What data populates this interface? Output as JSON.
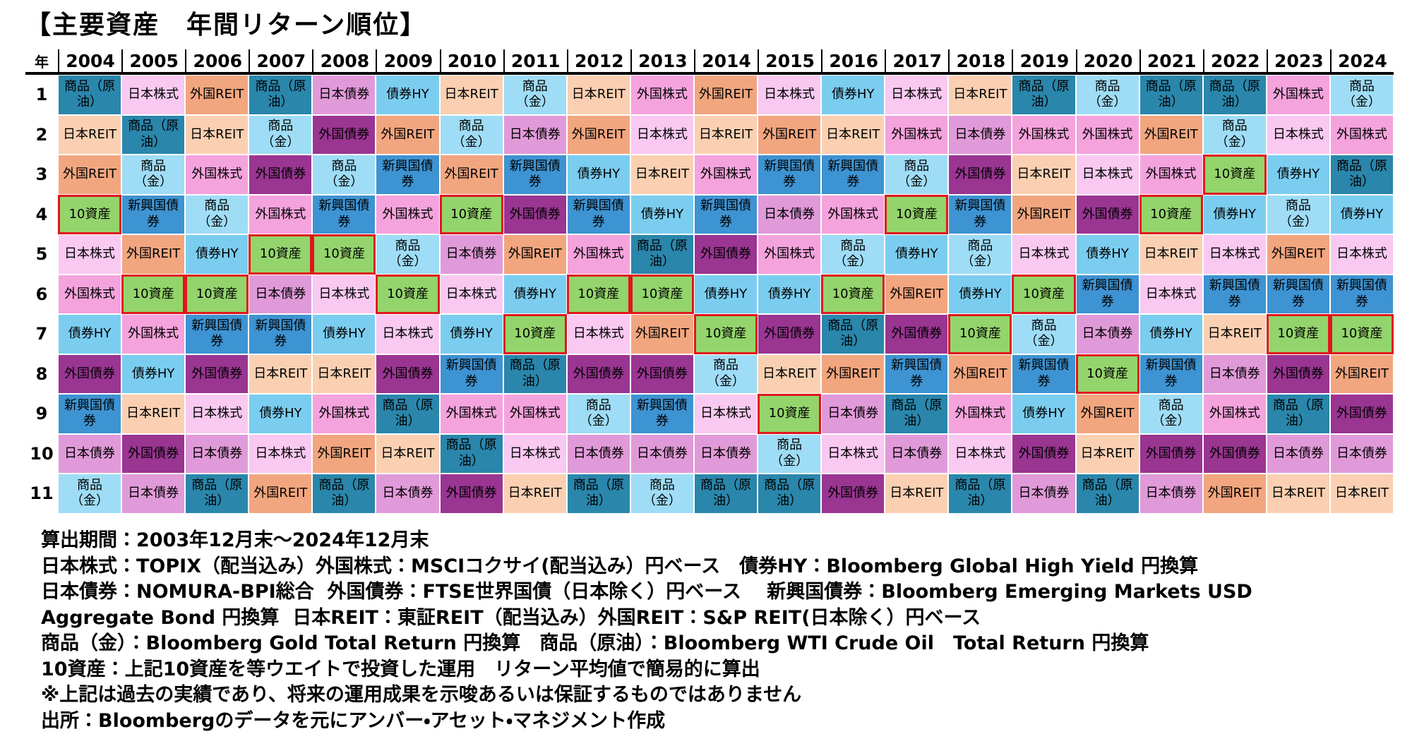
{
  "title": "【主要資産　年間リターン順位】",
  "table": {
    "corner": "年",
    "years": [
      2004,
      2005,
      2006,
      2007,
      2008,
      2009,
      2010,
      2011,
      2012,
      2013,
      2014,
      2015,
      2016,
      2017,
      2018,
      2019,
      2020,
      2021,
      2022,
      2023,
      2024
    ],
    "ranks": [
      1,
      2,
      3,
      4,
      5,
      6,
      7,
      8,
      9,
      10,
      11
    ],
    "rows": [
      [
        "商品（原油）",
        "日本株式",
        "外国REIT",
        "商品（原油）",
        "日本債券",
        "債券HY",
        "日本REIT",
        "商品（金）",
        "日本REIT",
        "外国株式",
        "外国REIT",
        "日本株式",
        "債券HY",
        "日本株式",
        "日本REIT",
        "商品（原油）",
        "商品（金）",
        "商品（原油）",
        "商品（原油）",
        "外国株式",
        "商品（金）"
      ],
      [
        "日本REIT",
        "商品（原油）",
        "日本REIT",
        "商品（金）",
        "外国債券",
        "外国REIT",
        "商品（金）",
        "日本債券",
        "外国REIT",
        "日本株式",
        "日本REIT",
        "外国REIT",
        "日本REIT",
        "外国株式",
        "日本債券",
        "外国株式",
        "外国株式",
        "外国REIT",
        "商品（金）",
        "日本株式",
        "外国株式"
      ],
      [
        "外国REIT",
        "商品（金）",
        "外国株式",
        "外国債券",
        "商品（金）",
        "新興国債券",
        "外国REIT",
        "新興国債券",
        "債券HY",
        "日本REIT",
        "外国株式",
        "新興国債券",
        "新興国債券",
        "商品（金）",
        "外国債券",
        "日本REIT",
        "日本株式",
        "外国株式",
        "10資産",
        "債券HY",
        "商品（原油）"
      ],
      [
        "10資産",
        "新興国債券",
        "商品（金）",
        "外国株式",
        "新興国債券",
        "外国株式",
        "10資産",
        "外国債券",
        "新興国債券",
        "債券HY",
        "新興国債券",
        "日本債券",
        "外国株式",
        "10資産",
        "新興国債券",
        "外国REIT",
        "外国債券",
        "10資産",
        "債券HY",
        "商品（金）",
        "債券HY"
      ],
      [
        "日本株式",
        "外国REIT",
        "債券HY",
        "10資産",
        "10資産",
        "商品（金）",
        "日本債券",
        "外国REIT",
        "外国株式",
        "商品（原油）",
        "外国債券",
        "外国株式",
        "商品（金）",
        "債券HY",
        "商品（金）",
        "日本株式",
        "債券HY",
        "日本REIT",
        "日本株式",
        "外国REIT",
        "日本株式"
      ],
      [
        "外国株式",
        "10資産",
        "10資産",
        "日本債券",
        "日本株式",
        "10資産",
        "日本株式",
        "債券HY",
        "10資産",
        "10資産",
        "債券HY",
        "債券HY",
        "10資産",
        "外国REIT",
        "債券HY",
        "10資産",
        "新興国債券",
        "日本株式",
        "新興国債券",
        "新興国債券",
        "新興国債券"
      ],
      [
        "債券HY",
        "外国株式",
        "新興国債券",
        "新興国債券",
        "債券HY",
        "日本株式",
        "債券HY",
        "10資産",
        "日本株式",
        "外国REIT",
        "10資産",
        "外国債券",
        "商品（原油）",
        "外国債券",
        "10資産",
        "商品（金）",
        "日本債券",
        "債券HY",
        "日本REIT",
        "10資産",
        "10資産"
      ],
      [
        "外国債券",
        "債券HY",
        "外国債券",
        "日本REIT",
        "日本REIT",
        "外国債券",
        "新興国債券",
        "商品（原油）",
        "外国債券",
        "外国債券",
        "商品（金）",
        "日本REIT",
        "外国REIT",
        "新興国債券",
        "外国REIT",
        "新興国債券",
        "10資産",
        "新興国債券",
        "日本債券",
        "外国債券",
        "外国REIT"
      ],
      [
        "新興国債券",
        "日本REIT",
        "日本株式",
        "債券HY",
        "外国株式",
        "商品（原油）",
        "外国株式",
        "外国株式",
        "商品（金）",
        "新興国債券",
        "日本株式",
        "10資産",
        "日本債券",
        "商品（原油）",
        "外国株式",
        "債券HY",
        "外国REIT",
        "商品（金）",
        "外国株式",
        "商品（原油）",
        "外国債券"
      ],
      [
        "日本債券",
        "外国債券",
        "日本債券",
        "日本株式",
        "外国REIT",
        "日本REIT",
        "商品（原油）",
        "日本株式",
        "日本債券",
        "日本債券",
        "日本債券",
        "商品（金）",
        "日本株式",
        "日本債券",
        "日本株式",
        "外国債券",
        "日本REIT",
        "外国債券",
        "外国債券",
        "日本債券",
        "日本債券"
      ],
      [
        "商品（金）",
        "日本債券",
        "商品（原油）",
        "外国REIT",
        "商品（原油）",
        "日本債券",
        "外国債券",
        "日本REIT",
        "商品（原油）",
        "商品（金）",
        "商品（原油）",
        "商品（原油）",
        "外国債券",
        "日本REIT",
        "商品（原油）",
        "日本債券",
        "商品（原油）",
        "日本債券",
        "外国REIT",
        "日本REIT",
        "日本REIT"
      ]
    ],
    "styles": {
      "商品（原油）": {
        "fill": "#2a86ab"
      },
      "商品（金）": {
        "fill": "#9fdcf6"
      },
      "日本株式": {
        "fill": "#f9c9f1"
      },
      "外国株式": {
        "fill": "#f5a3dd"
      },
      "日本債券": {
        "fill": "#e19ad9"
      },
      "外国債券": {
        "fill": "#9a3592"
      },
      "新興国債券": {
        "fill": "#3e93d2"
      },
      "債券HY": {
        "fill": "#7bcdf0"
      },
      "日本REIT": {
        "fill": "#fbd0b2"
      },
      "外国REIT": {
        "fill": "#f2a67f"
      },
      "10資産": {
        "fill": "#94d46c",
        "border": "#e0161c"
      }
    }
  },
  "notes": [
    "算出期間：2003年12月末～2024年12月末",
    "日本株式：TOPIX（配当込み）外国株式：MSCIコクサイ(配当込み）円ベース　債券HY：Bloomberg Global High Yield 円換算",
    "日本債券：NOMURA-BPI総合  外国債券：FTSE世界国債（日本除く）円ベース　 新興国債券：Bloomberg Emerging Markets USD",
    "Aggregate Bond 円換算  日本REIT：東証REIT（配当込み）外国REIT：S&P REIT(日本除く）円ベース",
    "商品（金）：Bloomberg Gold Total Return 円換算　商品（原油）：Bloomberg WTI Crude Oil　Total Return 円換算",
    "10資産：上記10資産を等ウエイトで投資した運用　リターン平均値で簡易的に算出",
    "※上記は過去の実績であり、将来の運用成果を示唆あるいは保証するものではありません",
    "出所：Bloombergのデータを元にアンバー・アセット・マネジメント作成"
  ]
}
